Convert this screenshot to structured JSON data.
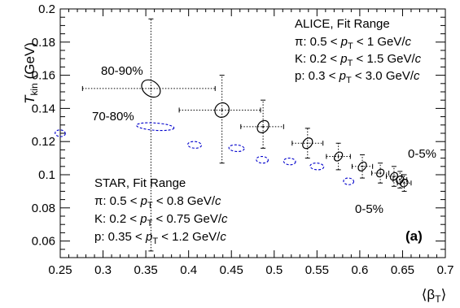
{
  "chart_data": {
    "type": "scatter",
    "title": "",
    "xlabel": "⟨β_T⟩",
    "ylabel": "T_kin (GeV)",
    "xlim": [
      0.25,
      0.7
    ],
    "ylim": [
      0.05,
      0.2
    ],
    "x_ticks": [
      "0.25",
      "0.3",
      "0.35",
      "0.4",
      "0.45",
      "0.5",
      "0.55",
      "0.6",
      "0.65",
      "0.7"
    ],
    "y_ticks": [
      "0.06",
      "0.08",
      "0.1",
      "0.12",
      "0.14",
      "0.16",
      "0.18",
      "0.2"
    ],
    "grid": false,
    "series": [
      {
        "name": "ALICE",
        "color": "#000000",
        "marker": "ellipse-solid",
        "points": [
          {
            "x": 0.356,
            "y": 0.152,
            "xerr": [
              0.08,
              0.075
            ],
            "yerr": [
              0.098,
              0.042
            ],
            "rx": 0.012,
            "ry": 0.0045
          },
          {
            "x": 0.439,
            "y": 0.139,
            "xerr": [
              0.05,
              0.045
            ],
            "yerr": [
              0.032,
              0.021
            ],
            "rx": 0.008,
            "ry": 0.0045
          },
          {
            "x": 0.487,
            "y": 0.129,
            "xerr": [
              0.026,
              0.024
            ],
            "yerr": [
              0.013,
              0.016
            ],
            "rx": 0.006,
            "ry": 0.004
          },
          {
            "x": 0.539,
            "y": 0.119,
            "xerr": [
              0.018,
              0.018
            ],
            "yerr": [
              0.009,
              0.009
            ],
            "rx": 0.005,
            "ry": 0.0035
          },
          {
            "x": 0.575,
            "y": 0.111,
            "xerr": [
              0.014,
              0.014
            ],
            "yerr": [
              0.008,
              0.008
            ],
            "rx": 0.004,
            "ry": 0.003
          },
          {
            "x": 0.603,
            "y": 0.105,
            "xerr": [
              0.012,
              0.012
            ],
            "yerr": [
              0.007,
              0.007
            ],
            "rx": 0.004,
            "ry": 0.003
          },
          {
            "x": 0.624,
            "y": 0.101,
            "xerr": [
              0.01,
              0.01
            ],
            "yerr": [
              0.006,
              0.006
            ],
            "rx": 0.003,
            "ry": 0.0025
          },
          {
            "x": 0.64,
            "y": 0.099,
            "xerr": [
              0.009,
              0.009
            ],
            "yerr": [
              0.006,
              0.006
            ],
            "rx": 0.003,
            "ry": 0.0025
          },
          {
            "x": 0.647,
            "y": 0.097,
            "xerr": [
              0.008,
              0.008
            ],
            "yerr": [
              0.005,
              0.005
            ],
            "rx": 0.003,
            "ry": 0.0025
          },
          {
            "x": 0.652,
            "y": 0.095,
            "xerr": [
              0.008,
              0.008
            ],
            "yerr": [
              0.005,
              0.005
            ],
            "rx": 0.003,
            "ry": 0.0025
          }
        ]
      },
      {
        "name": "STAR",
        "color": "#0000cc",
        "marker": "ellipse-dashed",
        "points": [
          {
            "x": 0.25,
            "y": 0.125,
            "rx": 0.006,
            "ry": 0.002
          },
          {
            "x": 0.361,
            "y": 0.129,
            "rx": 0.022,
            "ry": 0.0022
          },
          {
            "x": 0.407,
            "y": 0.118,
            "rx": 0.008,
            "ry": 0.002
          },
          {
            "x": 0.456,
            "y": 0.116,
            "rx": 0.009,
            "ry": 0.002
          },
          {
            "x": 0.486,
            "y": 0.109,
            "rx": 0.007,
            "ry": 0.002
          },
          {
            "x": 0.518,
            "y": 0.108,
            "rx": 0.007,
            "ry": 0.002
          },
          {
            "x": 0.55,
            "y": 0.105,
            "rx": 0.008,
            "ry": 0.002
          },
          {
            "x": 0.587,
            "y": 0.096,
            "rx": 0.006,
            "ry": 0.002
          }
        ]
      }
    ],
    "annotations": {
      "alice_legend": [
        "ALICE, Fit Range",
        "π: 0.5 < p_T < 1 GeV/c",
        "K: 0.2 < p_T < 1.5 GeV/c",
        "p: 0.3 < p_T < 3.0 GeV/c"
      ],
      "star_legend": [
        "STAR, Fit Range",
        "π: 0.5 < p_T < 0.8 GeV/c",
        "K: 0.2 < p_T < 0.75 GeV/c",
        "p: 0.35 < p_T < 1.2 GeV/c"
      ],
      "label_80_90": "80-90%",
      "label_70_80": "70-80%",
      "label_0_5_alice": "0-5%",
      "label_0_5_star": "0-5%",
      "panel_label": "(a)"
    }
  }
}
